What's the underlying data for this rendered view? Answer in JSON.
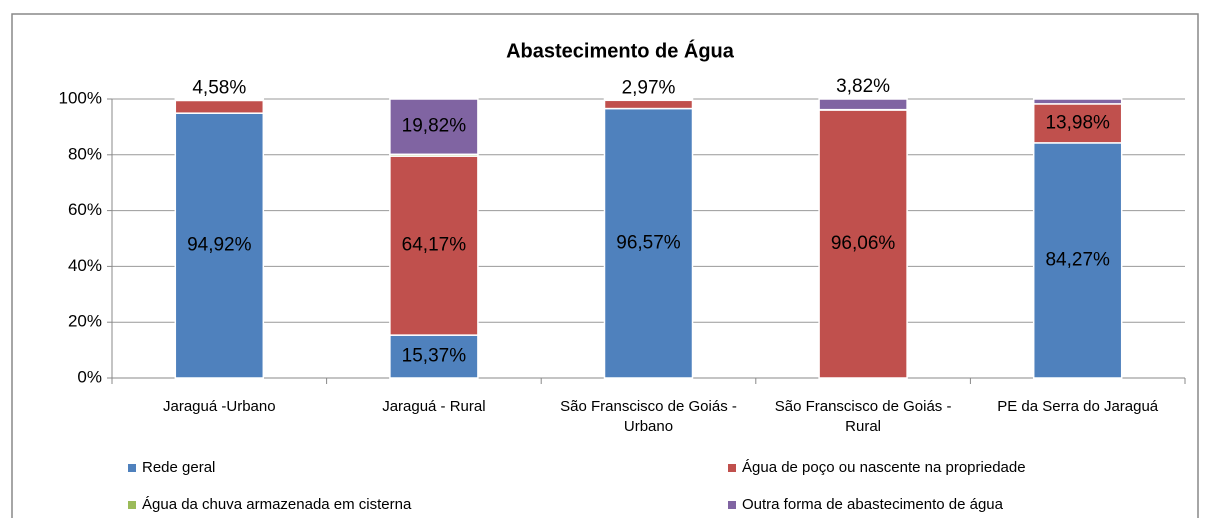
{
  "chart_data": {
    "type": "stacked_bar",
    "title": "Abastecimento de Água",
    "categories": [
      "Jaraguá -Urbano",
      "Jaraguá - Rural",
      "São Franscisco de Goiás - Urbano",
      "São Franscisco de Goiás - Rural",
      "PE da Serra do Jaraguá"
    ],
    "series": [
      {
        "name": "Rede geral",
        "color": "#4f81bd",
        "values": [
          94.92,
          15.37,
          96.57,
          0,
          84.27
        ],
        "value_labels": [
          "94,92%",
          "15,37%",
          "96,57%",
          null,
          "84,27%"
        ]
      },
      {
        "name": "Água de poço ou nascente na propriedade",
        "color": "#c0504d",
        "values": [
          4.58,
          64.17,
          2.97,
          96.06,
          13.98
        ],
        "value_labels": [
          "4,58%",
          "64,17%",
          "2,97%",
          "96,06%",
          "13,98%"
        ]
      },
      {
        "name": "Água da chuva armazenada em cisterna",
        "color": "#9bbb59",
        "values": [
          0,
          0.64,
          0,
          0.12,
          0
        ]
      },
      {
        "name": "Outra forma de abastecimento de água",
        "color": "#8064a2",
        "values": [
          0.5,
          19.82,
          0.46,
          3.82,
          1.75
        ],
        "value_labels": [
          null,
          "19,82%",
          null,
          "3,82%",
          null
        ]
      }
    ],
    "ylim": [
      0,
      100
    ],
    "yticks": [
      {
        "value": 0,
        "label": "0%"
      },
      {
        "value": 20,
        "label": "20%"
      },
      {
        "value": 40,
        "label": "40%"
      },
      {
        "value": 60,
        "label": "60%"
      },
      {
        "value": 80,
        "label": "80%"
      },
      {
        "value": 100,
        "label": "100%"
      }
    ],
    "grid": true,
    "legend": "bottom"
  }
}
